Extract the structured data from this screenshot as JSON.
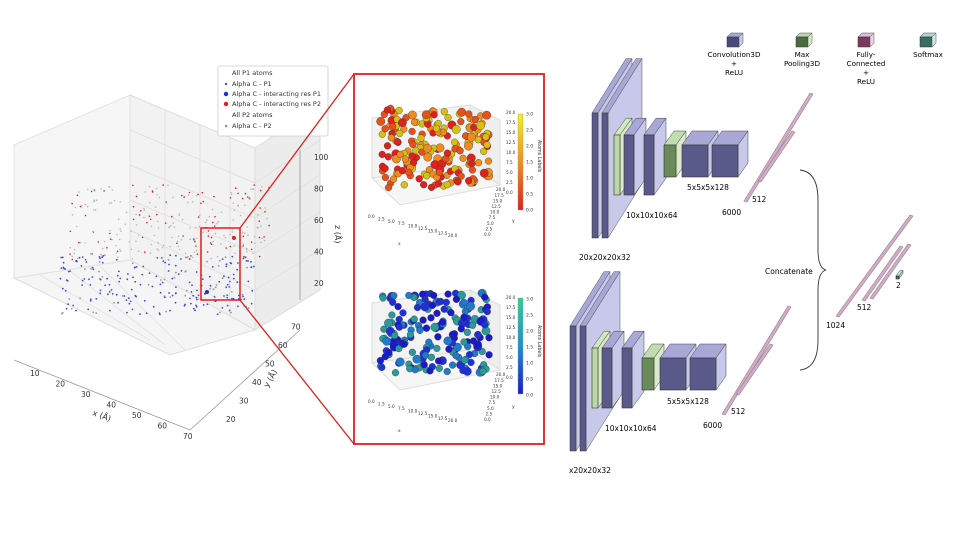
{
  "left_plot": {
    "legend": {
      "group1_header": "All P1 atoms",
      "items1": [
        {
          "label": "Alpha C - P1",
          "color": "#3a4fd6"
        },
        {
          "label": "Alpha C - interacting res P1",
          "color": "#1f2fd0"
        },
        {
          "label": "Alpha C - interacting res P2",
          "color": "#e0201c"
        }
      ],
      "group2_header": "All P2 atoms",
      "items2": [
        {
          "label": "Alpha C - P2",
          "color": "#e86a5a"
        }
      ]
    },
    "x_label": "x (Å)",
    "y_label": "y (Å)",
    "z_label": "z (Å)",
    "x_ticks": [
      "10",
      "20",
      "30",
      "40",
      "50",
      "60",
      "70"
    ],
    "y_ticks": [
      "20",
      "30",
      "40",
      "50",
      "60",
      "70"
    ],
    "z_ticks": [
      "20",
      "40",
      "60",
      "80",
      "100"
    ]
  },
  "zoom_top": {
    "colorbar_label": "Atoms Labels",
    "colorbar_ticks": [
      "0.0",
      "0.5",
      "1.0",
      "1.5",
      "2.0",
      "2.5",
      "3.0"
    ],
    "z_ticks": [
      "0.0",
      "2.5",
      "5.0",
      "7.5",
      "10.0",
      "12.5",
      "15.0",
      "17.5",
      "20.0"
    ],
    "x_ticks": [
      "0.0",
      "2.5",
      "5.0",
      "7.5",
      "10.0",
      "12.5",
      "15.0",
      "17.5",
      "20.0"
    ],
    "y_ticks": [
      "0.0",
      "2.5",
      "5.0",
      "7.5",
      "10.0",
      "12.5",
      "15.0",
      "17.5",
      "20.0"
    ],
    "x_label": "x",
    "y_label": "y",
    "palette": [
      "#e0201c",
      "#e8501a",
      "#f08c1e",
      "#d8c010"
    ]
  },
  "zoom_bottom": {
    "colorbar_label": "Atoms Labels",
    "colorbar_ticks": [
      "0.0",
      "0.5",
      "1.0",
      "1.5",
      "2.0",
      "2.5",
      "3.0"
    ],
    "z_ticks": [
      "0.0",
      "2.5",
      "5.0",
      "7.5",
      "10.0",
      "12.5",
      "15.0",
      "17.5",
      "20.0"
    ],
    "x_ticks": [
      "0.0",
      "2.5",
      "5.0",
      "7.5",
      "10.0",
      "12.5",
      "15.0",
      "17.5",
      "20.0"
    ],
    "y_ticks": [
      "0.0",
      "2.5",
      "5.0",
      "7.5",
      "10.0",
      "12.5",
      "15.0",
      "17.5",
      "20.0"
    ],
    "x_label": "x",
    "y_label": "y",
    "palette": [
      "#1a1ac8",
      "#2030d8",
      "#2a9a9a",
      "#1e7ad0"
    ]
  },
  "network": {
    "legend": [
      {
        "label_lines": [
          "Convolution3D",
          "+",
          "ReLU"
        ],
        "color": "#4a4a7a"
      },
      {
        "label_lines": [
          "Max",
          "Pooling3D"
        ],
        "color": "#4a6a40"
      },
      {
        "label_lines": [
          "Fully-",
          "Connected",
          "+",
          "ReLU"
        ],
        "color": "#7a3a60"
      },
      {
        "label_lines": [
          "Softmax"
        ],
        "color": "#3a6a60"
      }
    ],
    "branch1": {
      "input": "20x20x20x32",
      "conv2": "10x10x10x64",
      "conv3": "5x5x5x128",
      "fc1": "6000",
      "fc2": "512"
    },
    "branch2": {
      "input": "x20x20x32",
      "conv2": "10x10x10x64",
      "conv3": "5x5x5x128",
      "fc1": "6000",
      "fc2": "512"
    },
    "merge": {
      "label": "Concatenate",
      "fc1": "1024",
      "fc2": "512",
      "out": "2"
    }
  },
  "colors": {
    "conv_face": "#5a5a8a",
    "conv_side": "#c8c8ea",
    "conv_top": "#a8a8d8",
    "pool_face": "#6a8a5a",
    "pool_side": "#d8eac8",
    "fc_face": "#d8a8c8",
    "highlight": "#e0201c"
  }
}
